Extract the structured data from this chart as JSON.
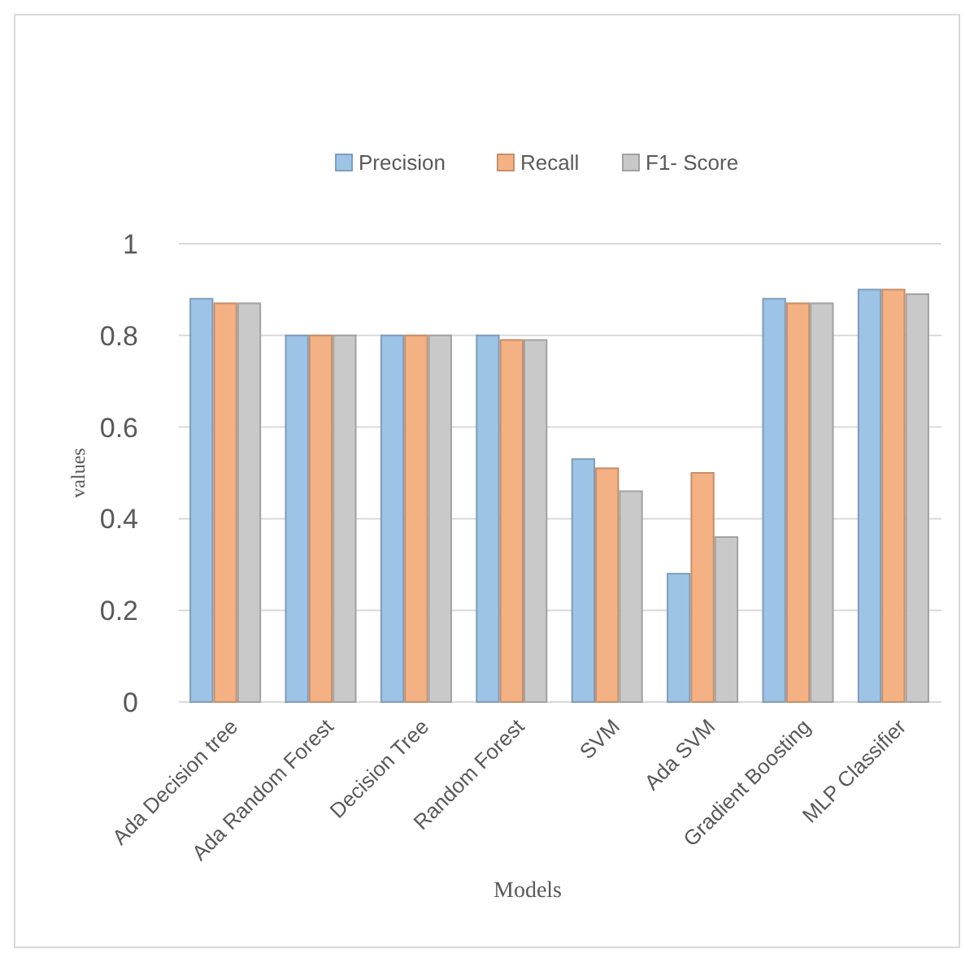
{
  "chart_data": {
    "type": "bar",
    "xlabel": "Models",
    "ylabel": "values",
    "categories": [
      "Ada Decision tree",
      "Ada Random Forest",
      "Decision Tree",
      "Random Forest",
      "SVM",
      "Ada SVM",
      "Gradient Boosting",
      "MLP Classifier"
    ],
    "series": [
      {
        "name": "Precision",
        "color": "#9dc3e6",
        "values": [
          0.88,
          0.8,
          0.8,
          0.8,
          0.53,
          0.28,
          0.88,
          0.9
        ]
      },
      {
        "name": "Recall",
        "color": "#f4b183",
        "values": [
          0.87,
          0.8,
          0.8,
          0.79,
          0.51,
          0.5,
          0.87,
          0.9
        ]
      },
      {
        "name": "F1- Score",
        "color": "#c9c9c9",
        "values": [
          0.87,
          0.8,
          0.8,
          0.79,
          0.46,
          0.36,
          0.87,
          0.89
        ]
      }
    ],
    "ylim": [
      0,
      1
    ],
    "yticks": [
      0,
      0.2,
      0.4,
      0.6,
      0.8,
      1
    ],
    "grid": "y",
    "legend": "top"
  }
}
